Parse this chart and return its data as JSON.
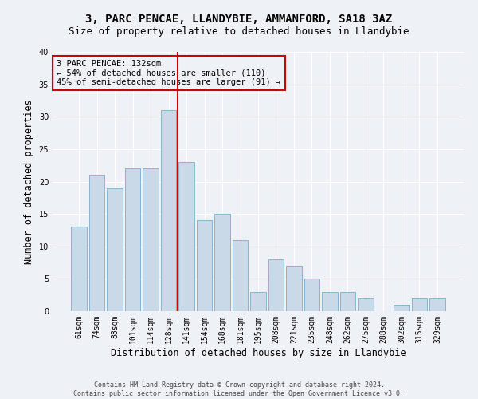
{
  "title": "3, PARC PENCAE, LLANDYBIE, AMMANFORD, SA18 3AZ",
  "subtitle": "Size of property relative to detached houses in Llandybie",
  "xlabel": "Distribution of detached houses by size in Llandybie",
  "ylabel": "Number of detached properties",
  "categories": [
    "61sqm",
    "74sqm",
    "88sqm",
    "101sqm",
    "114sqm",
    "128sqm",
    "141sqm",
    "154sqm",
    "168sqm",
    "181sqm",
    "195sqm",
    "208sqm",
    "221sqm",
    "235sqm",
    "248sqm",
    "262sqm",
    "275sqm",
    "288sqm",
    "302sqm",
    "315sqm",
    "329sqm"
  ],
  "values": [
    13,
    21,
    19,
    22,
    22,
    31,
    23,
    14,
    15,
    11,
    3,
    8,
    7,
    5,
    3,
    3,
    2,
    0,
    1,
    2,
    2
  ],
  "bar_color": "#c9d9e8",
  "bar_edge_color": "#8ab4cc",
  "vline_x": 5.5,
  "vline_color": "#cc0000",
  "annotation_text": "3 PARC PENCAE: 132sqm\n← 54% of detached houses are smaller (110)\n45% of semi-detached houses are larger (91) →",
  "annotation_box_color": "#cc0000",
  "ylim": [
    0,
    40
  ],
  "yticks": [
    0,
    5,
    10,
    15,
    20,
    25,
    30,
    35,
    40
  ],
  "footer": "Contains HM Land Registry data © Crown copyright and database right 2024.\nContains public sector information licensed under the Open Government Licence v3.0.",
  "background_color": "#eef2f7",
  "grid_color": "#ffffff",
  "title_fontsize": 10,
  "subtitle_fontsize": 9,
  "axis_label_fontsize": 8.5,
  "tick_fontsize": 7,
  "annotation_fontsize": 7.5,
  "footer_fontsize": 6
}
